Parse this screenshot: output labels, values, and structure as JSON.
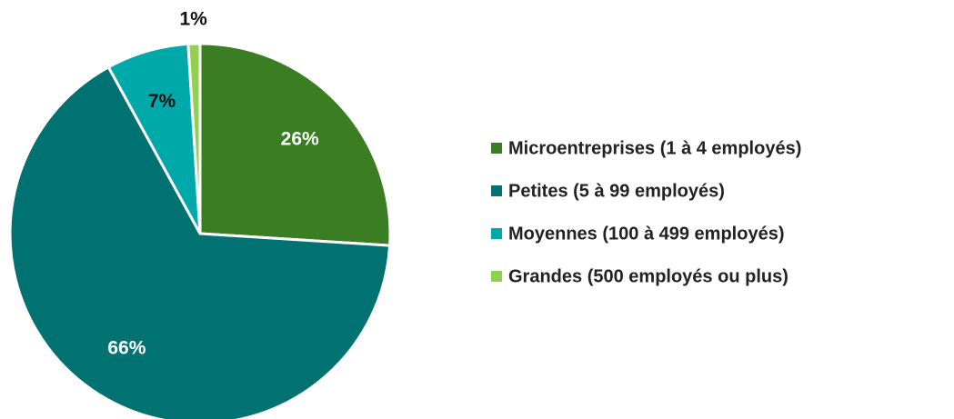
{
  "chart_data": {
    "type": "pie",
    "categories": [
      "Microentreprises (1 à 4 employés)",
      "Petites (5 à 99 employés)",
      "Moyennes (100 à 499 employés)",
      "Grandes (500 employés ou plus)"
    ],
    "values": [
      26,
      66,
      7,
      1
    ],
    "value_labels": [
      "26%",
      "66%",
      "7%",
      "1%"
    ],
    "colors": [
      "#3b7d23",
      "#007272",
      "#00a9a9",
      "#92d050"
    ],
    "legend": "right"
  }
}
